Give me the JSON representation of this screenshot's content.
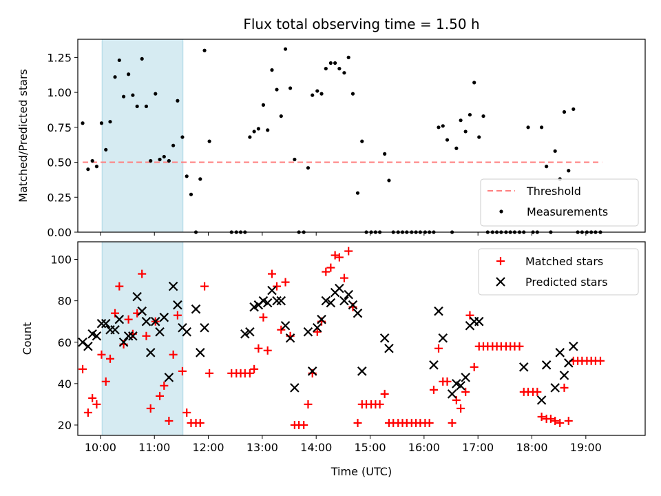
{
  "figure_title": "Flux total observing time = 1.50 h",
  "colors": {
    "threshold": "#ff7f7f",
    "measurement": "#000000",
    "matched": "#ff0000",
    "predicted": "#000000",
    "highlight": "#add8e6"
  },
  "chart_data": [
    {
      "type": "scatter",
      "title": "Flux total observing time = 1.50 h",
      "xlabel": "",
      "ylabel": "Matched/Predicted stars",
      "xlim": [
        9.58,
        20.1
      ],
      "ylim": [
        0.0,
        1.38
      ],
      "x_ticks": [
        10,
        11,
        12,
        13,
        14,
        15,
        16,
        17,
        18,
        19
      ],
      "y_ticks": [
        0.0,
        0.25,
        0.5,
        0.75,
        1.0,
        1.25
      ],
      "y_tick_labels": [
        "0.00",
        "0.25",
        "0.50",
        "0.75",
        "1.00",
        "1.25"
      ],
      "highlight_span": [
        10.03,
        11.53
      ],
      "threshold": {
        "name": "Threshold",
        "value": 0.5,
        "x_range": [
          9.67,
          19.3
        ]
      },
      "legend": {
        "placement": "lower right",
        "entries": [
          "Threshold",
          "Measurements"
        ]
      },
      "series": [
        {
          "name": "Measurements",
          "x": [
            9.67,
            9.77,
            9.85,
            9.93,
            10.02,
            10.1,
            10.18,
            10.27,
            10.35,
            10.43,
            10.52,
            10.6,
            10.68,
            10.77,
            10.85,
            10.93,
            11.02,
            11.1,
            11.18,
            11.27,
            11.35,
            11.43,
            11.52,
            11.6,
            11.68,
            11.77,
            11.85,
            11.93,
            12.02,
            12.43,
            12.52,
            12.6,
            12.68,
            12.77,
            12.85,
            12.93,
            13.02,
            13.1,
            13.18,
            13.27,
            13.35,
            13.43,
            13.52,
            13.6,
            13.68,
            13.77,
            13.85,
            13.93,
            14.02,
            14.1,
            14.18,
            14.27,
            14.35,
            14.43,
            14.52,
            14.6,
            14.68,
            14.77,
            14.85,
            14.93,
            15.02,
            15.1,
            15.18,
            15.27,
            15.35,
            15.43,
            15.52,
            15.6,
            15.68,
            15.77,
            15.85,
            15.93,
            16.02,
            16.1,
            16.18,
            16.27,
            16.35,
            16.43,
            16.52,
            16.6,
            16.68,
            16.77,
            16.85,
            16.93,
            17.02,
            17.1,
            17.18,
            17.27,
            17.35,
            17.43,
            17.52,
            17.6,
            17.68,
            17.77,
            17.85,
            17.93,
            18.02,
            18.1,
            18.18,
            18.27,
            18.35,
            18.43,
            18.52,
            18.6,
            18.68,
            18.77,
            18.85,
            18.93,
            19.02,
            19.1,
            19.18,
            19.27
          ],
          "y": [
            0.78,
            0.45,
            0.51,
            0.47,
            0.78,
            0.59,
            0.79,
            1.11,
            1.23,
            0.97,
            1.13,
            0.98,
            0.9,
            1.24,
            0.9,
            0.51,
            0.99,
            0.52,
            0.54,
            0.51,
            0.62,
            0.94,
            0.68,
            0.4,
            0.27,
            0.0,
            0.38,
            1.3,
            0.65,
            0.0,
            0.0,
            0.0,
            0.0,
            0.68,
            0.72,
            0.74,
            0.91,
            0.73,
            1.16,
            1.02,
            0.83,
            1.31,
            1.03,
            0.52,
            0.0,
            0.0,
            0.46,
            0.98,
            1.01,
            0.99,
            1.17,
            1.21,
            1.21,
            1.17,
            1.14,
            1.25,
            0.99,
            0.28,
            0.65,
            0.0,
            0.0,
            0.0,
            0.0,
            0.56,
            0.37,
            0.0,
            0.0,
            0.0,
            0.0,
            0.0,
            0.0,
            0.0,
            0.0,
            0.0,
            0.0,
            0.75,
            0.76,
            0.66,
            0.0,
            0.6,
            0.8,
            0.72,
            0.84,
            1.07,
            0.68,
            0.83,
            0.0,
            0.0,
            0.0,
            0.0,
            0.0,
            0.0,
            0.0,
            0.0,
            0.0,
            0.75,
            0.0,
            0.0,
            0.75,
            0.47,
            0.0,
            0.58,
            0.38,
            0.86,
            0.44,
            0.88,
            0.0,
            0.0,
            0.0,
            0.0,
            0.0,
            0.0
          ]
        }
      ]
    },
    {
      "type": "scatter",
      "title": "",
      "xlabel": "Time (UTC)",
      "ylabel": "Count",
      "xlim": [
        9.58,
        20.1
      ],
      "ylim": [
        15.0,
        108.5
      ],
      "x_ticks": [
        10,
        11,
        12,
        13,
        14,
        15,
        16,
        17,
        18,
        19
      ],
      "x_tick_labels": [
        "10:00",
        "11:00",
        "12:00",
        "13:00",
        "14:00",
        "15:00",
        "16:00",
        "17:00",
        "18:00",
        "19:00"
      ],
      "y_ticks": [
        20,
        40,
        60,
        80,
        100
      ],
      "y_tick_labels": [
        "20",
        "40",
        "60",
        "80",
        "100"
      ],
      "highlight_span": [
        10.03,
        11.53
      ],
      "legend": {
        "placement": "upper right",
        "entries": [
          "Matched stars",
          "Predicted stars"
        ]
      },
      "series": [
        {
          "name": "Matched stars",
          "x": [
            9.67,
            9.77,
            9.85,
            9.93,
            10.02,
            10.1,
            10.18,
            10.27,
            10.35,
            10.43,
            10.52,
            10.6,
            10.68,
            10.77,
            10.85,
            10.93,
            11.02,
            11.1,
            11.18,
            11.27,
            11.35,
            11.43,
            11.52,
            11.6,
            11.68,
            11.77,
            11.85,
            11.93,
            12.02,
            12.43,
            12.52,
            12.6,
            12.68,
            12.77,
            12.85,
            12.93,
            13.02,
            13.1,
            13.18,
            13.27,
            13.35,
            13.43,
            13.52,
            13.6,
            13.68,
            13.77,
            13.85,
            13.93,
            14.02,
            14.1,
            14.18,
            14.27,
            14.35,
            14.43,
            14.52,
            14.6,
            14.68,
            14.77,
            14.85,
            14.93,
            15.02,
            15.1,
            15.18,
            15.27,
            15.35,
            15.43,
            15.52,
            15.6,
            15.68,
            15.77,
            15.85,
            15.93,
            16.02,
            16.1,
            16.18,
            16.27,
            16.35,
            16.43,
            16.52,
            16.6,
            16.68,
            16.77,
            16.85,
            16.93,
            17.02,
            17.1,
            17.18,
            17.27,
            17.35,
            17.43,
            17.52,
            17.6,
            17.68,
            17.77,
            17.85,
            17.93,
            18.02,
            18.1,
            18.18,
            18.27,
            18.35,
            18.43,
            18.52,
            18.6,
            18.68,
            18.77,
            18.85,
            18.93,
            19.02,
            19.1,
            19.18,
            19.27
          ],
          "y": [
            47,
            26,
            33,
            30,
            54,
            41,
            52,
            74,
            87,
            59,
            71,
            64,
            74,
            93,
            63,
            28,
            70,
            34,
            39,
            22,
            54,
            73,
            46,
            26,
            21,
            21,
            21,
            87,
            45,
            45,
            45,
            45,
            45,
            45,
            47,
            57,
            72,
            56,
            93,
            87,
            66,
            89,
            63,
            20,
            20,
            20,
            30,
            45,
            65,
            70,
            94,
            96,
            102,
            101,
            91,
            104,
            77,
            21,
            30,
            30,
            30,
            30,
            30,
            35,
            21,
            21,
            21,
            21,
            21,
            21,
            21,
            21,
            21,
            21,
            37,
            57,
            41,
            41,
            21,
            32,
            28,
            36,
            73,
            48,
            58,
            58,
            58,
            58,
            58,
            58,
            58,
            58,
            58,
            58,
            36,
            36,
            36,
            36,
            24,
            23,
            23,
            22,
            21,
            38,
            22,
            51,
            51,
            51,
            51,
            51,
            51,
            51
          ]
        },
        {
          "name": "Predicted stars",
          "x": [
            9.67,
            9.77,
            9.85,
            9.93,
            10.02,
            10.1,
            10.18,
            10.27,
            10.35,
            10.43,
            10.52,
            10.6,
            10.68,
            10.77,
            10.85,
            10.93,
            11.02,
            11.1,
            11.18,
            11.27,
            11.35,
            11.43,
            11.52,
            11.6,
            11.77,
            11.85,
            11.93,
            12.68,
            12.77,
            12.85,
            12.93,
            13.02,
            13.1,
            13.18,
            13.27,
            13.35,
            13.43,
            13.52,
            13.6,
            13.85,
            13.93,
            14.02,
            14.1,
            14.18,
            14.27,
            14.35,
            14.43,
            14.52,
            14.6,
            14.68,
            14.77,
            14.85,
            15.27,
            15.35,
            16.18,
            16.27,
            16.35,
            16.52,
            16.6,
            16.68,
            16.77,
            16.85,
            16.93,
            17.02,
            17.85,
            18.18,
            18.27,
            18.43,
            18.52,
            18.6,
            18.68,
            18.77
          ],
          "y": [
            60,
            58,
            64,
            63,
            69,
            69,
            66,
            66,
            71,
            60,
            63,
            63,
            82,
            75,
            70,
            55,
            70,
            65,
            72,
            43,
            87,
            78,
            67,
            65,
            76,
            55,
            67,
            64,
            65,
            77,
            78,
            80,
            79,
            85,
            80,
            80,
            68,
            62,
            38,
            65,
            46,
            67,
            71,
            80,
            79,
            84,
            86,
            80,
            83,
            78,
            74,
            46,
            62,
            57,
            49,
            75,
            62,
            35,
            40,
            39,
            43,
            68,
            70,
            70,
            48,
            32,
            49,
            38,
            55,
            44,
            50,
            58
          ]
        }
      ]
    }
  ]
}
